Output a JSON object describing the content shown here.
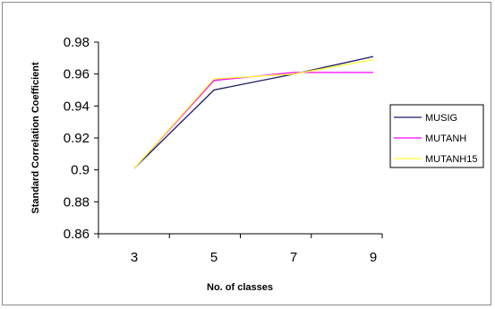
{
  "chart_data": {
    "type": "line",
    "title": "",
    "xlabel": "No. of classes",
    "ylabel": "Standard Correlation Coefficient",
    "categories": [
      "3",
      "5",
      "7",
      "9"
    ],
    "ylim": [
      0.86,
      0.98
    ],
    "yticks": [
      "0.98",
      "0.96",
      "0.94",
      "0.92",
      "0.9",
      "0.88",
      "0.86"
    ],
    "ytick_values": [
      0.98,
      0.96,
      0.94,
      0.92,
      0.9,
      0.88,
      0.86
    ],
    "grid": false,
    "legend_position": "right",
    "series": [
      {
        "name": "MUSIG",
        "color": "#1a1a66",
        "values": [
          0.901,
          0.95,
          0.96,
          0.971
        ]
      },
      {
        "name": "MUTANH",
        "color": "#ff00ff",
        "values": [
          0.901,
          0.956,
          0.961,
          0.961
        ]
      },
      {
        "name": "MUTANH15",
        "color": "#ffff33",
        "values": [
          0.901,
          0.957,
          0.96,
          0.969
        ]
      }
    ]
  }
}
